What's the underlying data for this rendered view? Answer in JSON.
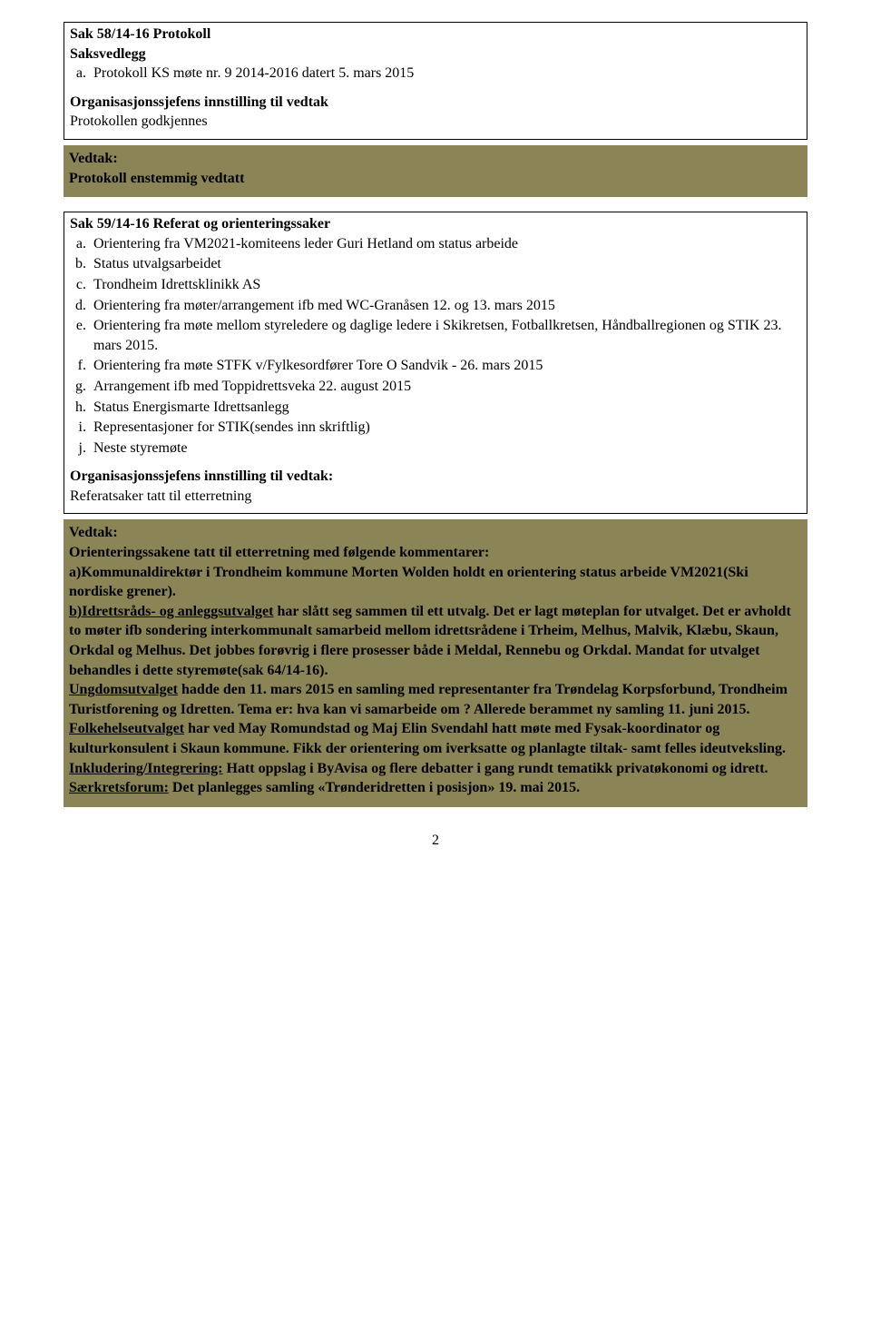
{
  "colors": {
    "olive_bg": "#8a8457",
    "text": "#000000",
    "page_bg": "#ffffff",
    "border": "#000000"
  },
  "typography": {
    "font_family": "Times New Roman",
    "base_size_pt": 12,
    "bold_weight": 700
  },
  "sak58": {
    "title": "Sak 58/14-16 Protokoll",
    "subheading": "Saksvedlegg",
    "items": [
      "Protokoll KS møte nr. 9 2014-2016 datert 5. mars 2015"
    ],
    "innstilling_label": "Organisasjonssjefens innstilling til vedtak",
    "innstilling_text": "Protokollen godkjennes"
  },
  "vedtak58": {
    "label": "Vedtak:",
    "text": "Protokoll enstemmig vedtatt"
  },
  "sak59": {
    "title": "Sak 59/14-16 Referat og orienteringssaker",
    "items": [
      "Orientering fra VM2021-komiteens leder Guri Hetland om status arbeide",
      "Status utvalgsarbeidet",
      "Trondheim Idrettsklinikk AS",
      "Orientering fra møter/arrangement ifb med WC-Granåsen 12. og 13. mars 2015",
      "Orientering fra møte mellom styreledere og daglige ledere i Skikretsen, Fotballkretsen, Håndballregionen og STIK 23. mars 2015.",
      "Orientering fra møte STFK v/Fylkesordfører Tore O Sandvik - 26. mars 2015",
      "Arrangement ifb med Toppidrettsveka 22. august 2015",
      "Status Energismarte Idrettsanlegg",
      "Representasjoner for STIK(sendes inn skriftlig)",
      "Neste styremøte"
    ],
    "innstilling_label": "Organisasjonssjefens innstilling til vedtak:",
    "innstilling_text": "Referatsaker tatt til etterretning"
  },
  "vedtak59": {
    "label": "Vedtak:",
    "intro": "Orienteringssakene tatt til etterretning med følgende kommentarer:",
    "a_label": "a)Kommunaldirektør",
    "a_text": " i Trondheim kommune Morten Wolden holdt en orientering status arbeide VM2021(Ski nordiske grener).",
    "b_label_u": "b)Idrettsråds- og anleggsutvalget",
    "b_text": " har slått seg sammen til ett utvalg. Det er lagt møteplan for utvalget. Det er avholdt to møter ifb sondering interkommunalt samarbeid mellom idrettsrådene i Trheim, Melhus, Malvik, Klæbu, Skaun, Orkdal og Melhus. Det jobbes forøvrig i flere prosesser både i Meldal, Rennebu og Orkdal. Mandat for utvalget behandles i dette styremøte(sak 64/14-16).",
    "ung_label_u": "Ungdomsutvalget",
    "ung_text": " hadde den 11. mars 2015 en samling med representanter fra Trøndelag Korpsforbund, Trondheim Turistforening og Idretten. Tema er: hva kan vi samarbeide om ? Allerede berammet ny samling 11. juni 2015.",
    "folk_label_u": "Folkehelseutvalget",
    "folk_text": " har ved May Romundstad og Maj Elin Svendahl hatt møte med Fysak-koordinator og kulturkonsulent i Skaun kommune. Fikk der orientering om iverksatte og planlagte tiltak- samt felles ideutveksling.",
    "inkl_label": "Inkludering/Integrering:",
    "inkl_text": " Hatt oppslag i ByAvisa og flere debatter i gang rundt tematikk privatøkonomi og idrett.",
    "saer_label_u": "Særkretsforum:",
    "saer_text": " Det planlegges samling «Trønderidretten i posisjon» 19. mai 2015."
  },
  "page_number": "2"
}
